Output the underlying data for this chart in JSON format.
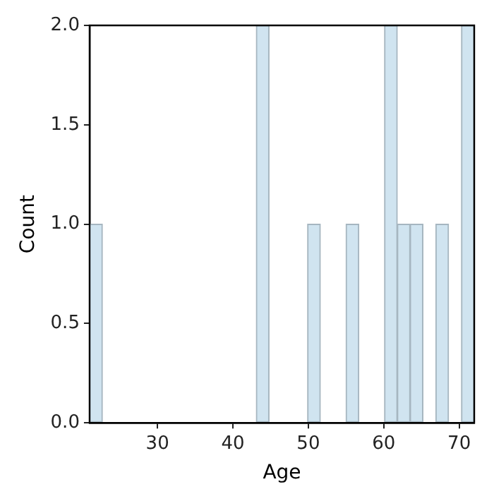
{
  "chart_data": {
    "type": "histogram",
    "xlabel": "Age",
    "ylabel": "Count",
    "bins": [
      21,
      22.7,
      24.4,
      26.1,
      27.8,
      29.5,
      31.2,
      32.9,
      34.6,
      36.3,
      38,
      39.7,
      41.4,
      43.1,
      44.8,
      46.5,
      48.2,
      49.9,
      51.6,
      53.3,
      55,
      56.7,
      58.4,
      60.1,
      61.8,
      63.5,
      65.2,
      66.9,
      68.6,
      70.3,
      72
    ],
    "values": [
      1,
      0,
      0,
      0,
      0,
      0,
      0,
      0,
      0,
      0,
      0,
      0,
      0,
      2,
      0,
      0,
      0,
      1,
      0,
      0,
      1,
      0,
      0,
      2,
      1,
      1,
      0,
      1,
      0,
      2
    ],
    "color": "#d0e4f0",
    "xlim": [
      21,
      72
    ],
    "xticks": [
      30,
      40,
      50,
      60,
      70
    ],
    "ylim": [
      0,
      2
    ],
    "yticks": [
      {
        "value": 0,
        "label": "0.0"
      },
      {
        "value": 0.5,
        "label": "0.5"
      },
      {
        "value": 1,
        "label": "1.0"
      },
      {
        "value": 1.5,
        "label": "1.5"
      },
      {
        "value": 2,
        "label": "2.0"
      }
    ],
    "grid": false,
    "legend": false
  }
}
